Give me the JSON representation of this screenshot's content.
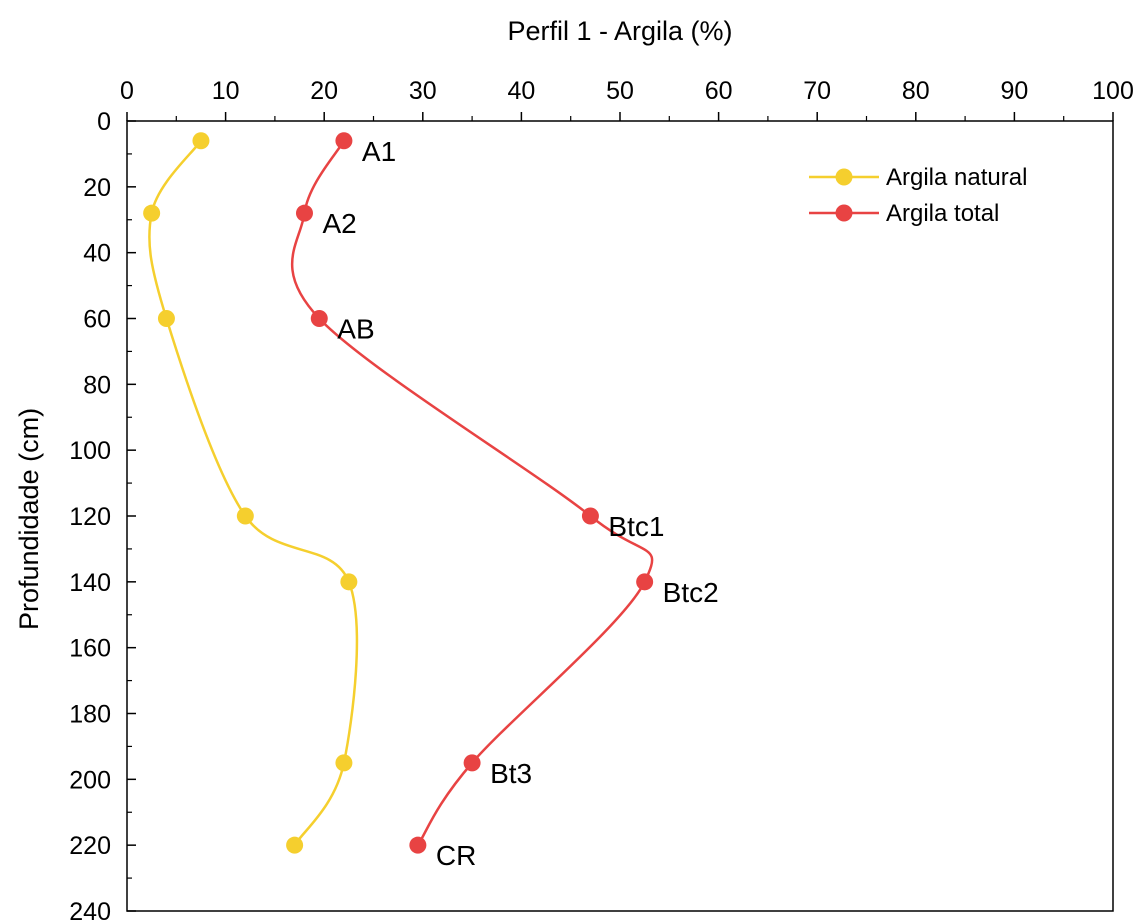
{
  "chart_data": {
    "type": "line",
    "title": "",
    "xlabel": "Perfil 1 - Argila (%)",
    "ylabel": "Profundidade (cm)",
    "xlim": [
      0,
      100
    ],
    "ylim": [
      0,
      240
    ],
    "y_inverted": true,
    "x_axis_position": "top",
    "xticks": [
      "0",
      "10",
      "20",
      "30",
      "40",
      "50",
      "60",
      "70",
      "80",
      "90",
      "100"
    ],
    "yticks": [
      "0",
      "20",
      "40",
      "60",
      "80",
      "100",
      "120",
      "140",
      "160",
      "180",
      "200",
      "220",
      "240"
    ],
    "grid": false,
    "smoothed": true,
    "legend_position": "top-right",
    "series": [
      {
        "name": "Argila natural",
        "color": "#f5cf2e",
        "x": [
          7.5,
          2.5,
          4,
          12,
          22.5,
          22,
          17
        ],
        "y": [
          6,
          28,
          60,
          120,
          140,
          195,
          220
        ]
      },
      {
        "name": "Argila total",
        "color": "#e84343",
        "x": [
          22,
          18,
          19.5,
          47,
          52.5,
          35,
          29.5
        ],
        "y": [
          6,
          28,
          60,
          120,
          140,
          195,
          220
        ],
        "point_labels": [
          "A1",
          "A2",
          "AB",
          "Btc1",
          "Btc2",
          "Bt3",
          "CR"
        ]
      }
    ]
  }
}
